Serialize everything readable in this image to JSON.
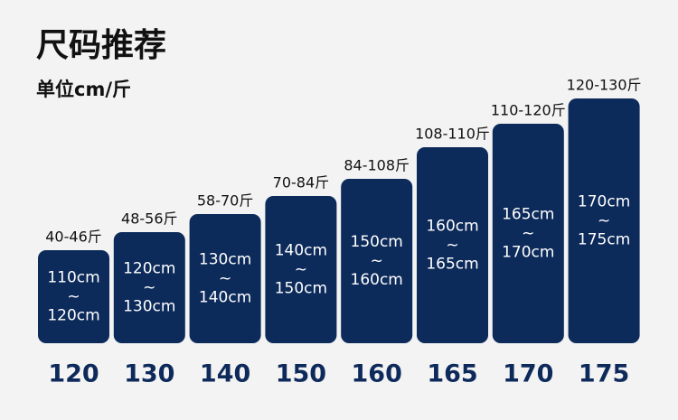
{
  "title": "尺码推荐",
  "unit": "单位cm/斤",
  "separator": "~",
  "sizes": [
    {
      "size": "120",
      "weight": "40-46斤",
      "height_from": "110cm",
      "height_to": "120cm"
    },
    {
      "size": "130",
      "weight": "48-56斤",
      "height_from": "120cm",
      "height_to": "130cm"
    },
    {
      "size": "140",
      "weight": "58-70斤",
      "height_from": "130cm",
      "height_to": "140cm"
    },
    {
      "size": "150",
      "weight": "70-84斤",
      "height_from": "140cm",
      "height_to": "150cm"
    },
    {
      "size": "160",
      "weight": "84-108斤",
      "height_from": "150cm",
      "height_to": "160cm"
    },
    {
      "size": "165",
      "weight": "108-110斤",
      "height_from": "160cm",
      "height_to": "165cm"
    },
    {
      "size": "170",
      "weight": "110-120斤",
      "height_from": "165cm",
      "height_to": "170cm"
    },
    {
      "size": "175",
      "weight": "120-130斤",
      "height_from": "170cm",
      "height_to": "175cm"
    }
  ]
}
